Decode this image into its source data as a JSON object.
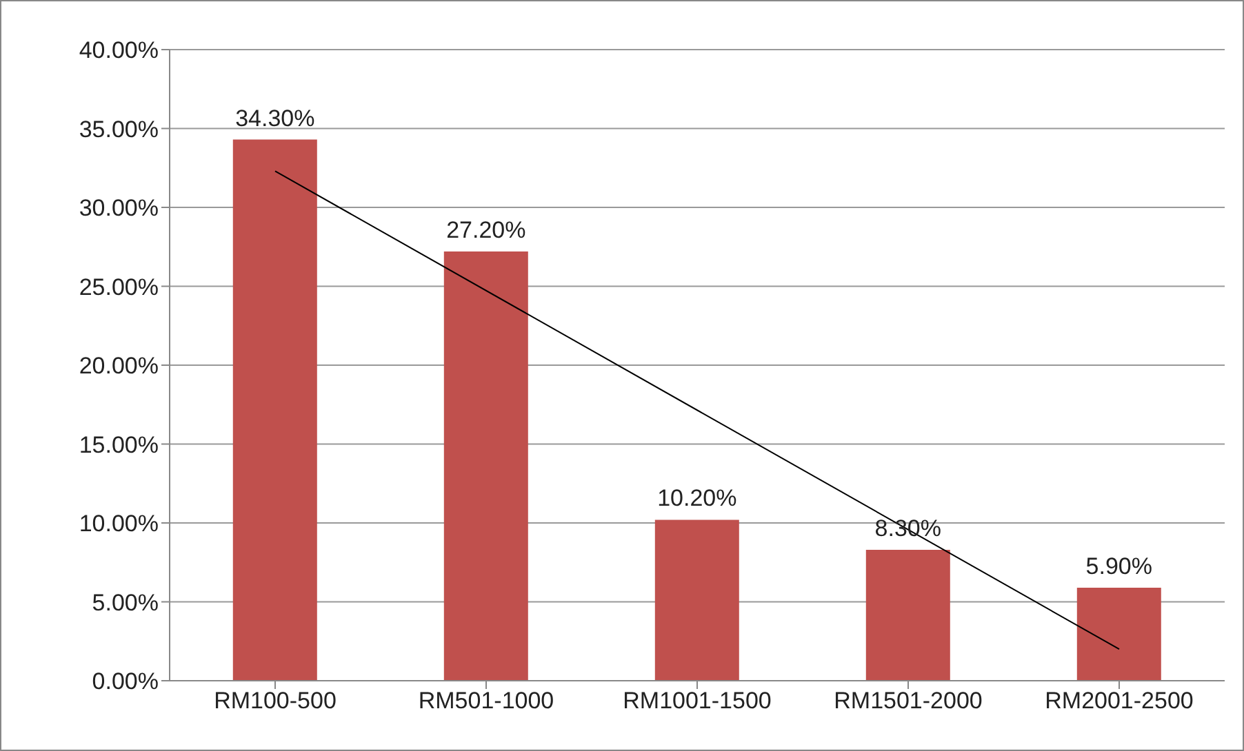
{
  "chart_data": {
    "type": "bar",
    "categories": [
      "RM100-500",
      "RM501-1000",
      "RM1001-1500",
      "RM1501-2000",
      "RM2001-2500"
    ],
    "series": [
      {
        "color": "#c0504d",
        "values": [
          34.3,
          27.2,
          10.2,
          8.3,
          5.9
        ],
        "value_labels": [
          "34.30%",
          "27.20%",
          "10.20%",
          "8.30%",
          "5.90%"
        ]
      },
      {
        "type": "line",
        "color": "#000000",
        "x": [
          "RM100-500",
          "RM2001-2500"
        ],
        "values": [
          32.3,
          2.0
        ]
      }
    ],
    "ylim": [
      0,
      40
    ],
    "yticks": [
      {
        "value": 0,
        "label": "0.00%"
      },
      {
        "value": 5,
        "label": "5.00%"
      },
      {
        "value": 10,
        "label": "10.00%"
      },
      {
        "value": 15,
        "label": "15.00%"
      },
      {
        "value": 20,
        "label": "20.00%"
      },
      {
        "value": 25,
        "label": "25.00%"
      },
      {
        "value": 30,
        "label": "30.00%"
      },
      {
        "value": 35,
        "label": "35.00%"
      },
      {
        "value": 40,
        "label": "40.00%"
      }
    ],
    "grid": "y",
    "marker": "none"
  }
}
